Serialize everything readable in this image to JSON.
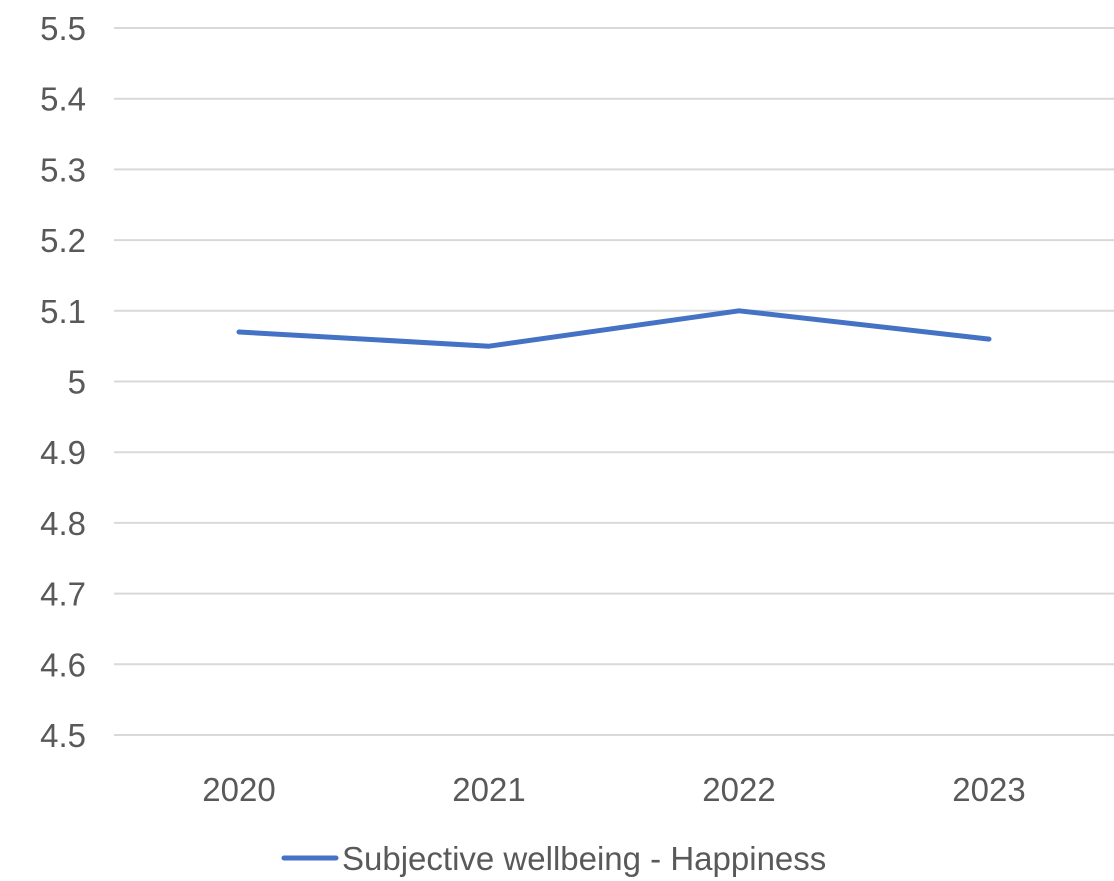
{
  "chart_data": {
    "type": "line",
    "x": [
      "2020",
      "2021",
      "2022",
      "2023"
    ],
    "series": [
      {
        "name": "Subjective wellbeing - Happiness",
        "values": [
          5.07,
          5.05,
          5.1,
          5.06
        ],
        "color": "#4472c4"
      }
    ],
    "yticks": [
      "4.5",
      "4.6",
      "4.7",
      "4.8",
      "4.9",
      "5",
      "5.1",
      "5.2",
      "5.3",
      "5.4",
      "5.5"
    ],
    "ylim": [
      4.5,
      5.5
    ],
    "grid": true,
    "legend_position": "bottom"
  }
}
